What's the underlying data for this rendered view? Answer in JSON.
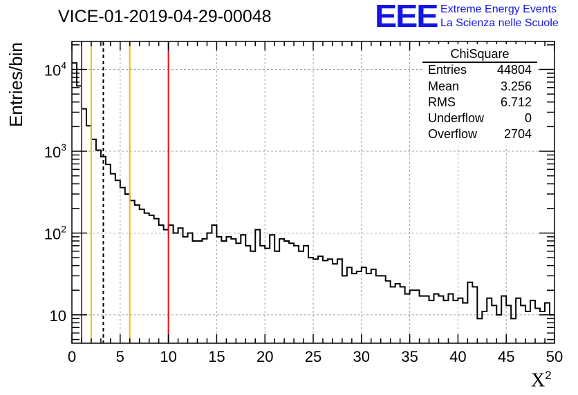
{
  "title": "VICE-01-2019-04-29-00048",
  "logo": {
    "mark": "EEE",
    "line1": "Extreme Energy Events",
    "line2": "La Scienza nelle Scuole"
  },
  "colors": {
    "histogram": "#000000",
    "red_lines": "#e01010",
    "yellow_lines": "#f0c000",
    "grid": "#a0a0a0",
    "logo": "#1414e6"
  },
  "stats": {
    "name": "ChiSquare",
    "rows": [
      {
        "key": "Entries",
        "value": "44804"
      },
      {
        "key": "Mean",
        "value": "3.256"
      },
      {
        "key": "RMS",
        "value": "6.712"
      },
      {
        "key": "Underflow",
        "value": "0"
      },
      {
        "key": "Overflow",
        "value": "2704"
      }
    ]
  },
  "chart_data": {
    "type": "histogram-step",
    "title": "VICE-01-2019-04-29-00048",
    "xlabel": "X",
    "xlabel_superscript": "2",
    "ylabel": "Entries/bin",
    "xlim": [
      0,
      50
    ],
    "ylim": [
      4.5,
      22000
    ],
    "yscale": "log",
    "grid": true,
    "bin_width": 0.5,
    "x_ticks": [
      "0",
      "5",
      "10",
      "15",
      "20",
      "25",
      "30",
      "35",
      "40",
      "45",
      "50"
    ],
    "x_tick_values": [
      0,
      5,
      10,
      15,
      20,
      25,
      30,
      35,
      40,
      45,
      50
    ],
    "y_tick_values": [
      10,
      100,
      1000,
      10000
    ],
    "y_tick_labels": [
      {
        "base": "10",
        "exp": ""
      },
      {
        "base": "10",
        "exp": "2"
      },
      {
        "base": "10",
        "exp": "3"
      },
      {
        "base": "10",
        "exp": "4"
      }
    ],
    "vertical_lines": [
      {
        "x": 1,
        "color": "red",
        "style": "solid"
      },
      {
        "x": 2,
        "color": "yellow",
        "style": "solid"
      },
      {
        "x": 3.256,
        "color": "black",
        "style": "dashed"
      },
      {
        "x": 6,
        "color": "yellow",
        "style": "solid"
      },
      {
        "x": 10,
        "color": "red",
        "style": "solid"
      }
    ],
    "bin_contents": [
      12000,
      6300,
      3300,
      2050,
      1400,
      1030,
      860,
      690,
      530,
      440,
      360,
      300,
      250,
      220,
      195,
      175,
      165,
      150,
      125,
      110,
      125,
      100,
      115,
      90,
      100,
      80,
      80,
      85,
      100,
      125,
      90,
      80,
      90,
      85,
      75,
      95,
      70,
      60,
      110,
      70,
      65,
      95,
      60,
      85,
      80,
      75,
      70,
      60,
      70,
      50,
      48,
      52,
      46,
      48,
      42,
      48,
      30,
      38,
      32,
      34,
      38,
      32,
      36,
      30,
      30,
      26,
      22,
      24,
      22,
      18,
      20,
      20,
      17,
      17,
      15,
      18,
      17,
      15,
      18,
      15,
      16,
      14,
      25,
      22,
      9,
      11,
      16,
      13,
      10,
      17,
      13,
      9,
      16,
      13,
      11,
      15,
      12,
      11,
      14,
      10
    ]
  }
}
